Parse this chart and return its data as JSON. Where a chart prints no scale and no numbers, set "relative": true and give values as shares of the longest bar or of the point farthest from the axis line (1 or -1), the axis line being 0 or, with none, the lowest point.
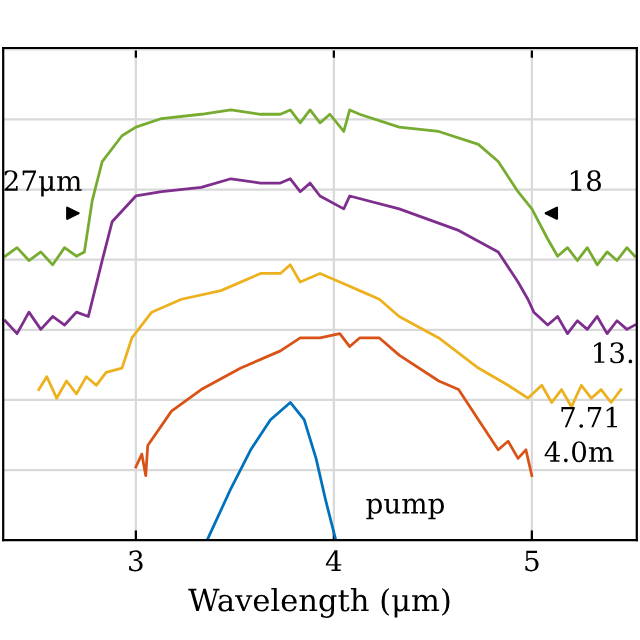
{
  "chart_data": {
    "type": "line",
    "relative": true,
    "xlabel": "Wavelength (μm)",
    "xlim": [
      2.33,
      5.53
    ],
    "xticks": [
      3,
      4,
      5
    ],
    "grid": true,
    "legend": false,
    "series": [
      {
        "color": "#77ac30",
        "x": [
          2.34,
          2.4,
          2.46,
          2.52,
          2.58,
          2.64,
          2.7,
          2.74,
          2.75,
          2.78,
          2.83,
          2.93,
          3.0,
          3.13,
          3.33,
          3.48,
          3.63,
          3.73,
          3.78,
          3.83,
          3.88,
          3.93,
          3.98,
          4.05,
          4.08,
          4.13,
          4.33,
          4.53,
          4.73,
          4.83,
          4.93,
          5.0,
          5.08,
          5.13,
          5.18,
          5.23,
          5.28,
          5.33,
          5.38,
          5.43,
          5.48,
          5.52
        ],
        "values": [
          0.66,
          0.68,
          0.65,
          0.67,
          0.64,
          0.68,
          0.66,
          0.67,
          0.7,
          0.79,
          0.88,
          0.94,
          0.96,
          0.98,
          0.99,
          1.0,
          0.99,
          0.99,
          1.0,
          0.97,
          1.0,
          0.97,
          0.99,
          0.95,
          1.0,
          0.99,
          0.96,
          0.95,
          0.92,
          0.88,
          0.81,
          0.77,
          0.7,
          0.66,
          0.68,
          0.65,
          0.68,
          0.64,
          0.67,
          0.65,
          0.68,
          0.66
        ]
      },
      {
        "name": "13.",
        "color": "#7e2f8e",
        "x": [
          2.34,
          2.4,
          2.46,
          2.52,
          2.58,
          2.64,
          2.7,
          2.76,
          2.83,
          2.88,
          3.0,
          3.13,
          3.33,
          3.48,
          3.63,
          3.73,
          3.78,
          3.83,
          3.88,
          3.93,
          4.05,
          4.08,
          4.33,
          4.63,
          4.83,
          4.93,
          4.98,
          5.01,
          5.08,
          5.13,
          5.18,
          5.23,
          5.28,
          5.33,
          5.38,
          5.43,
          5.48,
          5.52
        ],
        "values": [
          0.51,
          0.48,
          0.53,
          0.49,
          0.52,
          0.5,
          0.53,
          0.52,
          0.65,
          0.74,
          0.8,
          0.81,
          0.82,
          0.84,
          0.83,
          0.83,
          0.84,
          0.81,
          0.83,
          0.8,
          0.77,
          0.8,
          0.77,
          0.72,
          0.67,
          0.6,
          0.56,
          0.53,
          0.5,
          0.52,
          0.48,
          0.51,
          0.49,
          0.52,
          0.48,
          0.51,
          0.49,
          0.5
        ]
      },
      {
        "name": "7.71",
        "color": "#edb120",
        "x": [
          2.51,
          2.55,
          2.6,
          2.65,
          2.7,
          2.75,
          2.8,
          2.85,
          2.93,
          2.98,
          3.08,
          3.23,
          3.43,
          3.63,
          3.73,
          3.78,
          3.83,
          3.93,
          4.03,
          4.13,
          4.23,
          4.33,
          4.53,
          4.73,
          4.88,
          4.98,
          5.05,
          5.1,
          5.15,
          5.2,
          5.25,
          5.3,
          5.35,
          5.4,
          5.45
        ],
        "values": [
          0.35,
          0.38,
          0.33,
          0.37,
          0.34,
          0.38,
          0.36,
          0.39,
          0.4,
          0.47,
          0.53,
          0.56,
          0.58,
          0.62,
          0.62,
          0.64,
          0.6,
          0.62,
          0.6,
          0.58,
          0.56,
          0.52,
          0.47,
          0.4,
          0.36,
          0.33,
          0.36,
          0.32,
          0.35,
          0.31,
          0.36,
          0.33,
          0.35,
          0.32,
          0.35
        ]
      },
      {
        "name": "4.0m",
        "color": "#d95319",
        "x": [
          3.0,
          3.03,
          3.05,
          3.06,
          3.18,
          3.33,
          3.53,
          3.73,
          3.83,
          3.93,
          4.03,
          4.08,
          4.13,
          4.23,
          4.33,
          4.53,
          4.63,
          4.73,
          4.83,
          4.88,
          4.93,
          4.97,
          5.0
        ],
        "values": [
          0.17,
          0.2,
          0.15,
          0.22,
          0.3,
          0.35,
          0.4,
          0.44,
          0.47,
          0.47,
          0.48,
          0.45,
          0.47,
          0.47,
          0.43,
          0.37,
          0.35,
          0.28,
          0.21,
          0.23,
          0.19,
          0.21,
          0.15
        ]
      },
      {
        "name": "pump",
        "color": "#0072bd",
        "x": [
          3.36,
          3.48,
          3.58,
          3.68,
          3.78,
          3.85,
          3.91,
          3.96,
          4.01
        ],
        "values": [
          0,
          0.12,
          0.21,
          0.28,
          0.32,
          0.28,
          0.19,
          0.09,
          0
        ]
      }
    ],
    "annotations": [
      {
        "text": "27μm",
        "x": 2.75,
        "y": 0.76
      },
      {
        "text": "18",
        "x": 5.03,
        "y": 0.76
      }
    ]
  }
}
